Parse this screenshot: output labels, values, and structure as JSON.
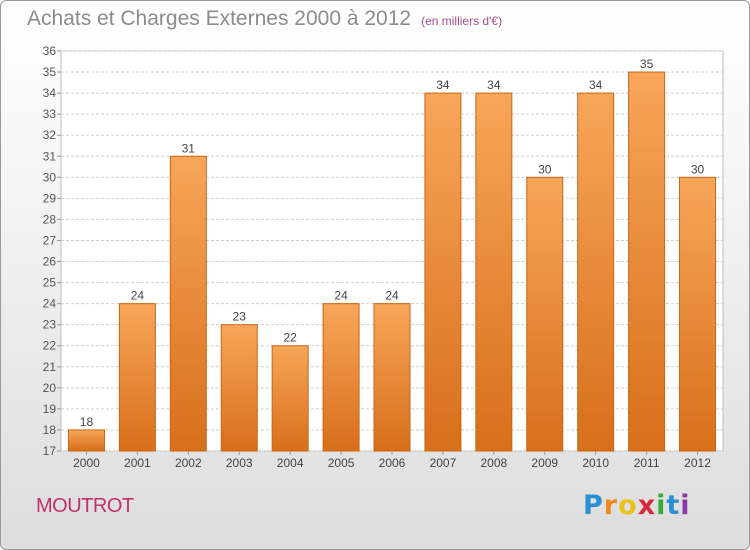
{
  "title": "Achats et Charges Externes 2000 à 2012",
  "subtitle": "(en milliers d'€)",
  "location": "MOUTROT",
  "logo": {
    "letters": [
      "P",
      "r",
      "o",
      "x",
      "i",
      "t",
      "i"
    ],
    "colors": [
      "#2a8fd4",
      "#f08a1c",
      "#e8c31a",
      "#d8283c",
      "#3aa83a",
      "#2a8fd4",
      "#8a3aa8"
    ]
  },
  "colors": {
    "bar_top": "#f7a65a",
    "bar_bottom": "#d86f1a",
    "bar_edge": "#c96614",
    "grid": "#cfcfcf"
  },
  "chart_data": {
    "type": "bar",
    "title": "Achats et Charges Externes 2000 à 2012",
    "subtitle": "(en milliers d'€)",
    "categories": [
      "2000",
      "2001",
      "2002",
      "2003",
      "2004",
      "2005",
      "2006",
      "2007",
      "2008",
      "2009",
      "2010",
      "2011",
      "2012"
    ],
    "values": [
      18,
      24,
      31,
      23,
      22,
      24,
      24,
      34,
      34,
      30,
      34,
      35,
      30
    ],
    "ylim": [
      17,
      36
    ],
    "yticks": [
      17,
      18,
      19,
      20,
      21,
      22,
      23,
      24,
      25,
      26,
      27,
      28,
      29,
      30,
      31,
      32,
      33,
      34,
      35,
      36
    ],
    "grid": true,
    "xlabel": "",
    "ylabel": ""
  }
}
